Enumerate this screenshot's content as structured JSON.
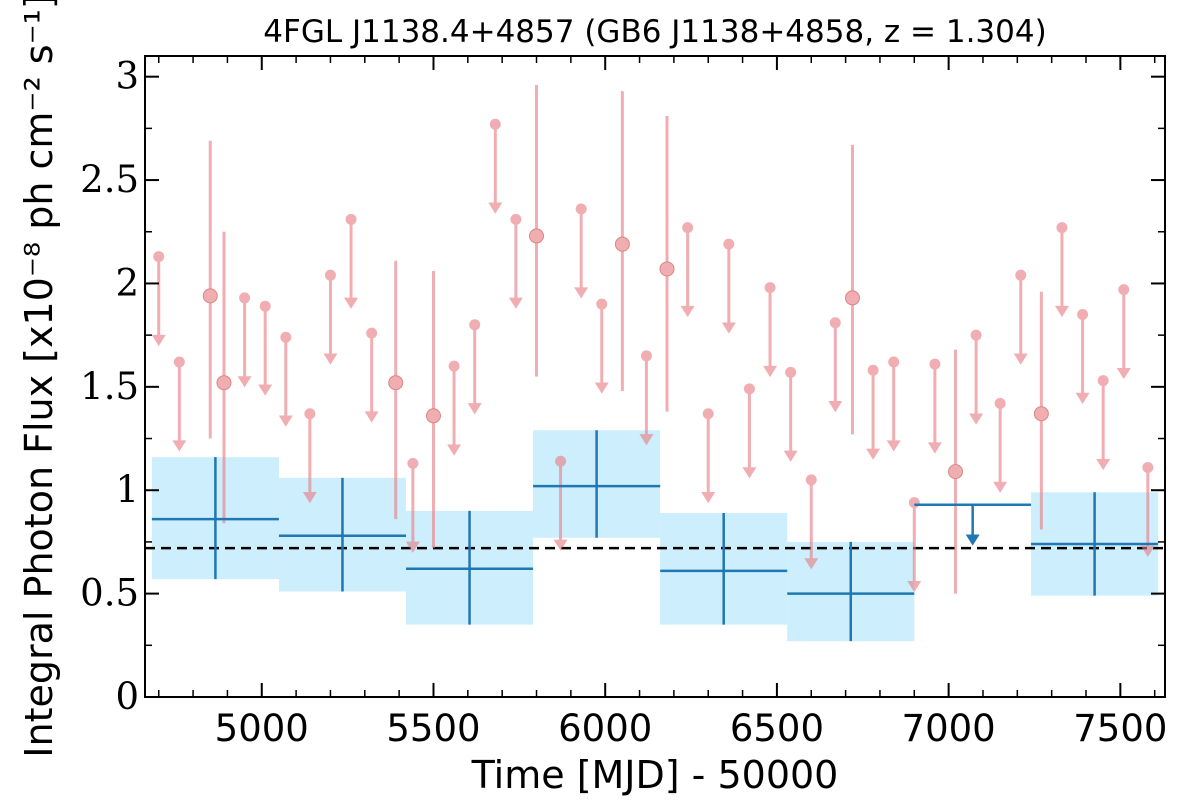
{
  "chart_data": {
    "type": "scatter",
    "title": "4FGL J1138.4+4857 (GB6 J1138+4858, z = 1.304)",
    "xlabel": "Time [MJD] - 50000",
    "ylabel": "Integral Photon Flux [x10⁻⁸ ph cm⁻² s⁻¹]",
    "xlim": [
      4660,
      7630
    ],
    "ylim": [
      0,
      3.1
    ],
    "xticks": [
      5000,
      5500,
      6000,
      6500,
      7000,
      7500
    ],
    "xtick_labels": [
      "5000",
      "5500",
      "6000",
      "6500",
      "7000",
      "7500"
    ],
    "yticks": [
      0,
      0.5,
      1,
      1.5,
      2,
      2.5,
      3
    ],
    "ytick_labels": [
      "0",
      "0.5",
      "1",
      "1.5",
      "2",
      "2.5",
      "3"
    ],
    "mean_flux": 0.72,
    "colors": {
      "short_bins": "#e87a80",
      "long_bins": "#1f77b4",
      "error_band": "#cdeefc",
      "mean_line": "#000000"
    },
    "series": [
      {
        "points": [
          {
            "x": 4700,
            "y": 2.13,
            "ul": true
          },
          {
            "x": 4760,
            "y": 1.62,
            "ul": true
          },
          {
            "x": 4850,
            "y": 1.94,
            "lo": 1.25,
            "hi": 2.69
          },
          {
            "x": 4890,
            "y": 1.52,
            "lo": 0.84,
            "hi": 2.25
          },
          {
            "x": 4950,
            "y": 1.93,
            "ul": true
          },
          {
            "x": 5010,
            "y": 1.89,
            "ul": true
          },
          {
            "x": 5070,
            "y": 1.74,
            "ul": true
          },
          {
            "x": 5140,
            "y": 1.37,
            "ul": true
          },
          {
            "x": 5200,
            "y": 2.04,
            "ul": true
          },
          {
            "x": 5260,
            "y": 2.31,
            "ul": true
          },
          {
            "x": 5320,
            "y": 1.76,
            "ul": true
          },
          {
            "x": 5390,
            "y": 1.52,
            "lo": 0.86,
            "hi": 2.11
          },
          {
            "x": 5440,
            "y": 1.13,
            "ul": true
          },
          {
            "x": 5500,
            "y": 1.36,
            "lo": 0.72,
            "hi": 2.06
          },
          {
            "x": 5560,
            "y": 1.6,
            "ul": true
          },
          {
            "x": 5620,
            "y": 1.8,
            "ul": true
          },
          {
            "x": 5680,
            "y": 2.77,
            "ul": true
          },
          {
            "x": 5740,
            "y": 2.31,
            "ul": true
          },
          {
            "x": 5800,
            "y": 2.23,
            "lo": 1.55,
            "hi": 2.96
          },
          {
            "x": 5870,
            "y": 1.14,
            "ul": true
          },
          {
            "x": 5930,
            "y": 2.36,
            "ul": true
          },
          {
            "x": 5990,
            "y": 1.9,
            "ul": true
          },
          {
            "x": 6050,
            "y": 2.19,
            "lo": 1.48,
            "hi": 2.93
          },
          {
            "x": 6120,
            "y": 1.65,
            "ul": true
          },
          {
            "x": 6180,
            "y": 2.07,
            "lo": 1.38,
            "hi": 2.81
          },
          {
            "x": 6240,
            "y": 2.27,
            "ul": true
          },
          {
            "x": 6300,
            "y": 1.37,
            "ul": true
          },
          {
            "x": 6360,
            "y": 2.19,
            "ul": true
          },
          {
            "x": 6420,
            "y": 1.49,
            "ul": true
          },
          {
            "x": 6480,
            "y": 1.98,
            "ul": true
          },
          {
            "x": 6540,
            "y": 1.57,
            "ul": true
          },
          {
            "x": 6600,
            "y": 1.05,
            "ul": true
          },
          {
            "x": 6670,
            "y": 1.81,
            "ul": true
          },
          {
            "x": 6720,
            "y": 1.93,
            "lo": 1.27,
            "hi": 2.67
          },
          {
            "x": 6780,
            "y": 1.58,
            "ul": true
          },
          {
            "x": 6840,
            "y": 1.62,
            "ul": true
          },
          {
            "x": 6900,
            "y": 0.94,
            "ul": true
          },
          {
            "x": 6960,
            "y": 1.61,
            "ul": true
          },
          {
            "x": 7020,
            "y": 1.09,
            "lo": 0.5,
            "hi": 1.68
          },
          {
            "x": 7080,
            "y": 1.75,
            "ul": true
          },
          {
            "x": 7150,
            "y": 1.42,
            "ul": true
          },
          {
            "x": 7210,
            "y": 2.04,
            "ul": true
          },
          {
            "x": 7270,
            "y": 1.37,
            "lo": 0.81,
            "hi": 1.96
          },
          {
            "x": 7330,
            "y": 2.27,
            "ul": true
          },
          {
            "x": 7390,
            "y": 1.85,
            "ul": true
          },
          {
            "x": 7450,
            "y": 1.53,
            "ul": true
          },
          {
            "x": 7510,
            "y": 1.97,
            "ul": true
          },
          {
            "x": 7580,
            "y": 1.11,
            "ul": true
          }
        ]
      },
      {
        "bins": [
          {
            "x0": 4680,
            "x1": 5050,
            "y": 0.86,
            "lo": 0.57,
            "hi": 1.16
          },
          {
            "x0": 5050,
            "x1": 5420,
            "y": 0.78,
            "lo": 0.51,
            "hi": 1.06
          },
          {
            "x0": 5420,
            "x1": 5790,
            "y": 0.62,
            "lo": 0.35,
            "hi": 0.9
          },
          {
            "x0": 5790,
            "x1": 6160,
            "y": 1.02,
            "lo": 0.77,
            "hi": 1.29
          },
          {
            "x0": 6160,
            "x1": 6530,
            "y": 0.61,
            "lo": 0.35,
            "hi": 0.89
          },
          {
            "x0": 6530,
            "x1": 6900,
            "y": 0.5,
            "lo": 0.27,
            "hi": 0.75
          },
          {
            "x0": 6900,
            "x1": 7240,
            "y": 0.93,
            "ul": true
          },
          {
            "x0": 7240,
            "x1": 7610,
            "y": 0.74,
            "lo": 0.49,
            "hi": 0.99
          }
        ]
      }
    ]
  }
}
